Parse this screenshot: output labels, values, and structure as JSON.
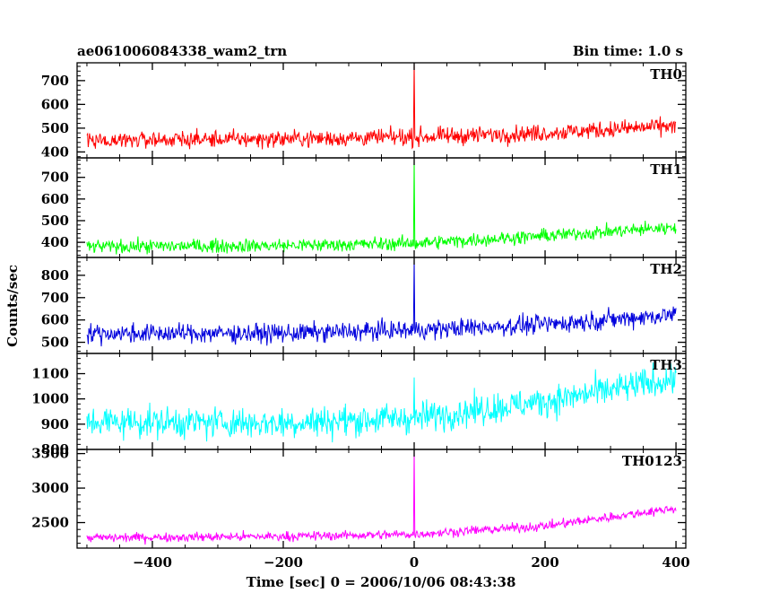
{
  "header": {
    "title": "ae061006084338_wam2_trn",
    "bin_time": "Bin time: 1.0 s"
  },
  "chart_data": [
    {
      "type": "line",
      "panel": "TH0",
      "label": "TH0",
      "color": "#ff0000",
      "xlim": [
        -515,
        415
      ],
      "ylim": [
        375,
        775
      ],
      "yticks": [
        400,
        500,
        600,
        700
      ],
      "x_range": [
        -500,
        400
      ],
      "baseline_points": [
        [
          -500,
          450
        ],
        [
          -200,
          455
        ],
        [
          0,
          462
        ],
        [
          200,
          480
        ],
        [
          400,
          510
        ]
      ],
      "noise_amplitude": 32,
      "spike": {
        "x": 0,
        "peak": 780
      }
    },
    {
      "type": "line",
      "panel": "TH1",
      "label": "TH1",
      "color": "#00ff00",
      "xlim": [
        -515,
        415
      ],
      "ylim": [
        330,
        790
      ],
      "yticks": [
        400,
        500,
        600,
        700
      ],
      "x_range": [
        -500,
        400
      ],
      "baseline_points": [
        [
          -500,
          380
        ],
        [
          -200,
          385
        ],
        [
          0,
          395
        ],
        [
          200,
          430
        ],
        [
          400,
          470
        ]
      ],
      "noise_amplitude": 28,
      "spike": {
        "x": 0,
        "peak": 790
      }
    },
    {
      "type": "line",
      "panel": "TH2",
      "label": "TH2",
      "color": "#0000dd",
      "xlim": [
        -515,
        415
      ],
      "ylim": [
        450,
        880
      ],
      "yticks": [
        500,
        600,
        700,
        800
      ],
      "x_range": [
        -500,
        400
      ],
      "baseline_points": [
        [
          -500,
          540
        ],
        [
          -200,
          540
        ],
        [
          0,
          555
        ],
        [
          200,
          580
        ],
        [
          400,
          625
        ]
      ],
      "noise_amplitude": 38,
      "spike": {
        "x": 0,
        "peak": 880
      }
    },
    {
      "type": "line",
      "panel": "TH3",
      "label": "TH3",
      "color": "#00ffff",
      "xlim": [
        -515,
        415
      ],
      "ylim": [
        800,
        1180
      ],
      "yticks": [
        800,
        900,
        1000,
        1100
      ],
      "x_range": [
        -500,
        400
      ],
      "baseline_points": [
        [
          -500,
          910
        ],
        [
          -200,
          905
        ],
        [
          0,
          925
        ],
        [
          200,
          990
        ],
        [
          400,
          1080
        ]
      ],
      "noise_amplitude": 55,
      "spike": {
        "x": 0,
        "peak": 1085
      }
    },
    {
      "type": "line",
      "panel": "TH0123",
      "label": "TH0123",
      "color": "#ff00ff",
      "xlim": [
        -515,
        415
      ],
      "ylim": [
        2130,
        3560
      ],
      "yticks": [
        2500,
        3000,
        3500
      ],
      "ytick_labels": [
        "2500",
        "3000",
        "3500"
      ],
      "x_range": [
        -500,
        400
      ],
      "baseline_points": [
        [
          -500,
          2280
        ],
        [
          -200,
          2300
        ],
        [
          0,
          2330
        ],
        [
          200,
          2450
        ],
        [
          400,
          2710
        ]
      ],
      "noise_amplitude": 60,
      "spike": {
        "x": 0,
        "peak": 3560
      }
    }
  ],
  "axes": {
    "xticks": [
      -400,
      -200,
      0,
      200,
      400
    ],
    "xlabel": "Time [sec] 0 = 2006/10/06 08:43:38",
    "ylabel": "Counts/sec"
  }
}
